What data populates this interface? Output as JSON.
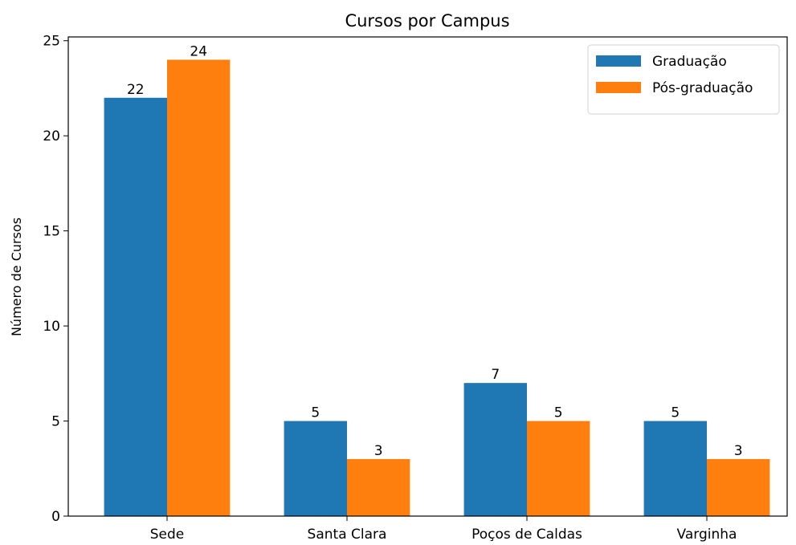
{
  "chart_data": {
    "type": "bar",
    "title": "Cursos por Campus",
    "ylabel": "Número de Cursos",
    "categories": [
      "Sede",
      "Santa Clara",
      "Poços de Caldas",
      "Varginha"
    ],
    "series": [
      {
        "name": "Graduação",
        "color": "#1f77b4",
        "values": [
          22,
          5,
          7,
          5
        ]
      },
      {
        "name": "Pós-graduação",
        "color": "#ff7f0e",
        "values": [
          24,
          3,
          5,
          3
        ]
      }
    ],
    "ylim": [
      0,
      25.2
    ],
    "yticks": [
      0,
      5,
      10,
      15,
      20,
      25
    ],
    "grid": false,
    "legend": "upper right"
  }
}
